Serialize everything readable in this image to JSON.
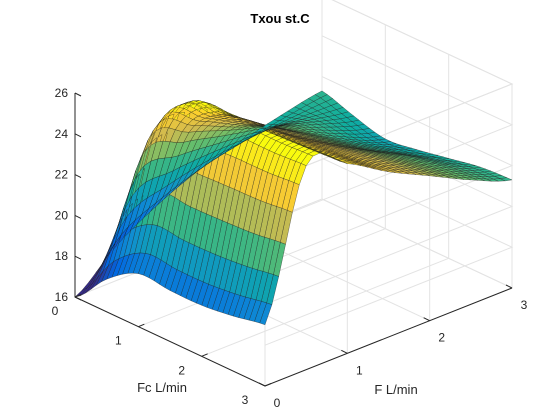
{
  "chart_data": {
    "type": "surface",
    "title": "Txou st.C",
    "xlabel": "Fc  L/min",
    "ylabel": "F L/min",
    "zlabel": "",
    "xlim": [
      0,
      3
    ],
    "ylim": [
      0,
      3
    ],
    "zlim": [
      16,
      26
    ],
    "xticks": [
      "0",
      "1",
      "2",
      "3"
    ],
    "yticks": [
      "0",
      "1",
      "2",
      "3"
    ],
    "zticks": [
      "16",
      "18",
      "20",
      "22",
      "24",
      "26"
    ],
    "grid": true,
    "colormap": "parula",
    "colormap_stops": [
      "#352a87",
      "#0268e1",
      "#108ed2",
      "#0fae9f",
      "#65be6c",
      "#d3bb4e",
      "#fcce2e",
      "#f9fb0e"
    ],
    "x": [
      0,
      0.5,
      1,
      1.5,
      2,
      2.5,
      3
    ],
    "y": [
      0,
      0.5,
      1,
      1.5,
      2,
      2.5,
      3
    ],
    "z": [
      [
        16.0,
        17.7,
        18.9,
        19.8,
        20.4,
        20.9,
        21.3
      ],
      [
        17.6,
        23.6,
        23.2,
        22.5,
        21.9,
        21.3,
        20.8
      ],
      [
        18.6,
        25.7,
        24.8,
        23.5,
        22.3,
        21.2,
        20.4
      ],
      [
        18.5,
        25.8,
        25.0,
        23.7,
        22.5,
        21.4,
        20.6
      ],
      [
        18.5,
        25.9,
        25.1,
        23.9,
        22.8,
        21.8,
        20.9
      ],
      [
        18.7,
        25.9,
        25.2,
        24.0,
        23.0,
        22.0,
        21.2
      ],
      [
        19.0,
        26.0,
        25.3,
        24.1,
        23.1,
        22.1,
        21.3
      ]
    ]
  }
}
